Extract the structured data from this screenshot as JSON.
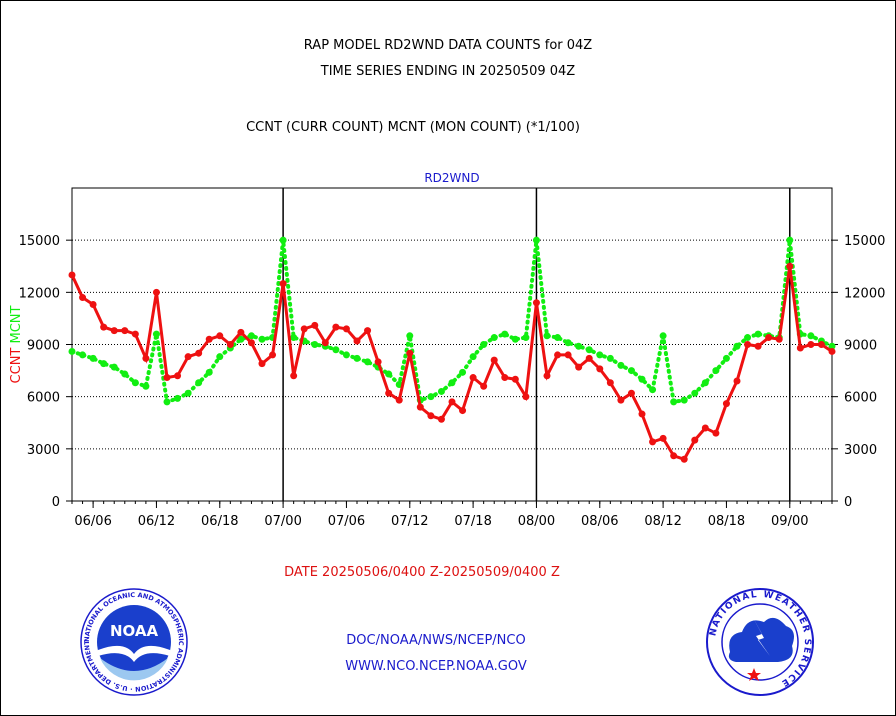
{
  "header": {
    "title_line1": "RAP MODEL RD2WND DATA COUNTS for 04Z",
    "title_line2": "TIME SERIES ENDING IN 20250509 04Z",
    "subtitle": "CCNT (CURR COUNT) MCNT (MON COUNT) (*1/100)"
  },
  "footer": {
    "date_range": "DATE 20250506/0400 Z-20250509/0400 Z",
    "org_line": "DOC/NOAA/NWS/NCEP/NCO",
    "url_line": "WWW.NCO.NCEP.NOAA.GOV"
  },
  "logos": {
    "noaa_text": "NOAA",
    "noaa_ring": "NATIONAL OCEANIC AND ATMOSPHERIC ADMINISTRATION · U.S. DEPARTMENT OF COMMERCE ·",
    "nws_ring": "NATIONAL WEATHER SERVICE"
  },
  "colors": {
    "ccnt": "#ee1111",
    "mcnt": "#11ee11",
    "title": "#000000",
    "date": "#dd1111",
    "footer": "#1a1acc",
    "series_label": "#1a1acc"
  },
  "chart_data": {
    "type": "line",
    "title": "RD2WND",
    "ylabel_ccnt": "CCNT",
    "ylabel_mcnt": "MCNT",
    "ylim": [
      0,
      18000
    ],
    "yticks": [
      0,
      3000,
      6000,
      9000,
      12000,
      15000
    ],
    "xlim": [
      0,
      72
    ],
    "xticks": [
      {
        "label": "06/06",
        "x": 2
      },
      {
        "label": "06/12",
        "x": 8
      },
      {
        "label": "06/18",
        "x": 14
      },
      {
        "label": "07/00",
        "x": 20
      },
      {
        "label": "07/06",
        "x": 26
      },
      {
        "label": "07/12",
        "x": 32
      },
      {
        "label": "07/18",
        "x": 38
      },
      {
        "label": "08/00",
        "x": 44
      },
      {
        "label": "08/06",
        "x": 50
      },
      {
        "label": "08/12",
        "x": 56
      },
      {
        "label": "08/18",
        "x": 62
      },
      {
        "label": "09/00",
        "x": 68
      }
    ],
    "day_boundaries": [
      20,
      44,
      68
    ],
    "grid": true,
    "series": [
      {
        "name": "CCNT",
        "style": "solid",
        "values": [
          13000,
          11700,
          11300,
          10000,
          9800,
          9800,
          9600,
          8200,
          12000,
          7100,
          7200,
          8300,
          8500,
          9300,
          9500,
          9000,
          9700,
          9100,
          7900,
          8400,
          12500,
          7200,
          9900,
          10100,
          9100,
          10000,
          9900,
          9200,
          9800,
          8000,
          6200,
          5800,
          8500,
          5400,
          4900,
          4700,
          5700,
          5200,
          7100,
          6600,
          8100,
          7100,
          7000,
          6000,
          11400,
          7200,
          8400,
          8400,
          7700,
          8200,
          7600,
          6800,
          5800,
          6200,
          5000,
          3400,
          3600,
          2600,
          2400,
          3500,
          4200,
          3900,
          5600,
          6900,
          9000,
          8900,
          9400,
          9300,
          13500,
          8800,
          9000,
          9000,
          8600
        ]
      },
      {
        "name": "MCNT",
        "style": "dotted",
        "values": [
          8600,
          8400,
          8200,
          7900,
          7700,
          7300,
          6800,
          6600,
          9600,
          5700,
          5900,
          6200,
          6800,
          7400,
          8300,
          8800,
          9300,
          9500,
          9300,
          9400,
          15000,
          9400,
          9200,
          9000,
          8900,
          8700,
          8400,
          8200,
          8000,
          7700,
          7300,
          6700,
          9500,
          5800,
          6000,
          6300,
          6800,
          7400,
          8300,
          9000,
          9400,
          9600,
          9300,
          9400,
          15000,
          9500,
          9400,
          9100,
          8900,
          8700,
          8400,
          8200,
          7800,
          7500,
          7000,
          6400,
          9500,
          5700,
          5800,
          6200,
          6800,
          7500,
          8200,
          8900,
          9400,
          9600,
          9500,
          9400,
          15000,
          9600,
          9500,
          9200,
          8900
        ]
      }
    ]
  }
}
